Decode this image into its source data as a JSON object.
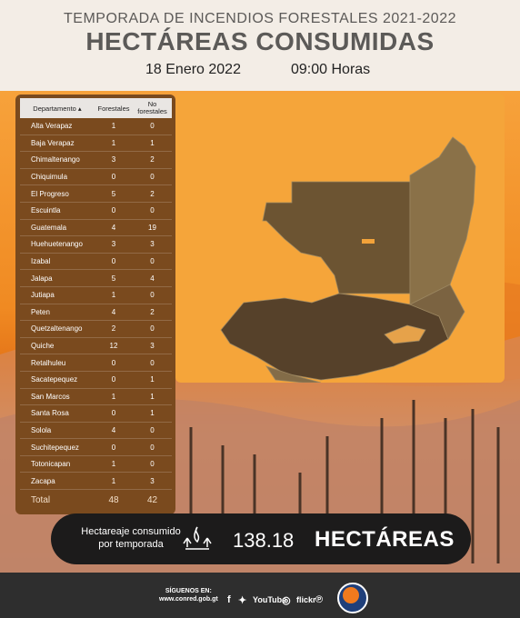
{
  "header": {
    "subtitle": "TEMPORADA DE INCENDIOS FORESTALES 2021-2022",
    "title": "HECTÁREAS CONSUMIDAS",
    "date": "18 Enero 2022",
    "time": "09:00 Horas"
  },
  "table": {
    "headers": [
      "Departamento",
      "Forestales",
      "No forestales"
    ],
    "rows": [
      [
        "Alta Verapaz",
        "1",
        "0"
      ],
      [
        "Baja Verapaz",
        "1",
        "1"
      ],
      [
        "Chimaltenango",
        "3",
        "2"
      ],
      [
        "Chiquimula",
        "0",
        "0"
      ],
      [
        "El Progreso",
        "5",
        "2"
      ],
      [
        "Escuintla",
        "0",
        "0"
      ],
      [
        "Guatemala",
        "4",
        "19"
      ],
      [
        "Huehuetenango",
        "3",
        "3"
      ],
      [
        "Izabal",
        "0",
        "0"
      ],
      [
        "Jalapa",
        "5",
        "4"
      ],
      [
        "Jutiapa",
        "1",
        "0"
      ],
      [
        "Peten",
        "4",
        "2"
      ],
      [
        "Quetzaltenango",
        "2",
        "0"
      ],
      [
        "Quiche",
        "12",
        "3"
      ],
      [
        "Retalhuleu",
        "0",
        "0"
      ],
      [
        "Sacatepequez",
        "0",
        "1"
      ],
      [
        "San Marcos",
        "1",
        "1"
      ],
      [
        "Santa Rosa",
        "0",
        "1"
      ],
      [
        "Solola",
        "4",
        "0"
      ],
      [
        "Suchitepequez",
        "0",
        "0"
      ],
      [
        "Totonicapan",
        "1",
        "0"
      ],
      [
        "Zacapa",
        "1",
        "3"
      ]
    ],
    "total": {
      "label": "Total",
      "forestales": "48",
      "no_forestales": "42"
    }
  },
  "summary": {
    "label_line1": "Hectareaje consumido",
    "label_line2": "por temporada",
    "value": "138.18",
    "unit": "HECTÁREAS"
  },
  "footer": {
    "follow_line1": "SÍGUENOS EN:",
    "follow_line2": "www.conred.gob.gt",
    "youtube": "YouTube",
    "flickr": "flickr"
  },
  "colors": {
    "accent": "#f39a2e",
    "panel": "#7a4a1e",
    "bar": "#1c1b1b",
    "footer": "#2e2e2e"
  },
  "icons": [
    "sort-arrow-icon",
    "forest-fire-icon",
    "facebook-icon",
    "twitter-icon",
    "youtube-icon",
    "instagram-icon",
    "flickr-icon",
    "pinterest-icon",
    "conred-logo"
  ]
}
